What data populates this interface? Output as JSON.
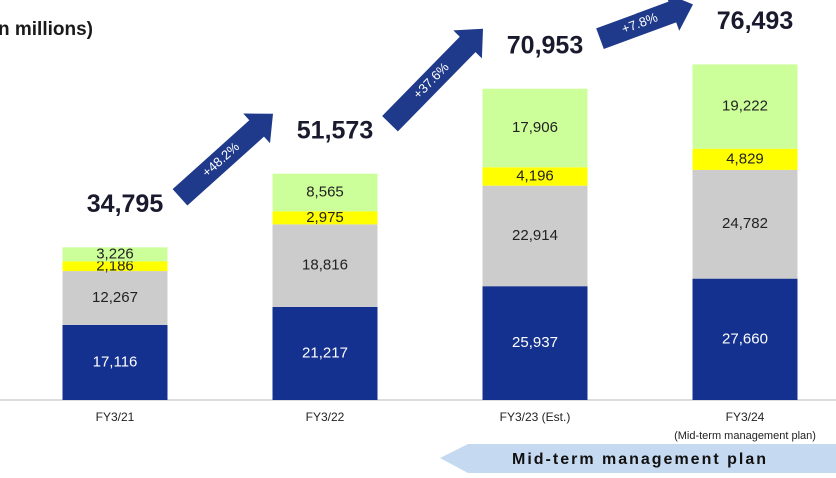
{
  "chart_data": {
    "type": "stacked_bar",
    "title": "n millions)",
    "categories": [
      "FY3/21",
      "FY3/22",
      "FY3/23 (Est.)",
      "FY3/24"
    ],
    "category_note": "(Mid-term management plan)",
    "series": [
      {
        "color": "#15318f",
        "values": [
          17116,
          21217,
          25937,
          27660
        ],
        "value_labels": [
          "17,116",
          "21,217",
          "25,937",
          "27,660"
        ]
      },
      {
        "color": "#cccccc",
        "values": [
          12267,
          18816,
          22914,
          24782
        ],
        "value_labels": [
          "12,267",
          "18,816",
          "22,914",
          "24,782"
        ]
      },
      {
        "color": "#ffff00",
        "values": [
          2186,
          2975,
          4196,
          4829
        ],
        "value_labels": [
          "2,186",
          "2,975",
          "4,196",
          "4,829"
        ]
      },
      {
        "color": "#ccff99",
        "values": [
          3226,
          8565,
          17906,
          19222
        ],
        "value_labels": [
          "3,226",
          "8,565",
          "17,906",
          "19,222"
        ]
      }
    ],
    "totals": [
      34795,
      51573,
      70953,
      76493
    ],
    "total_labels": [
      "34,795",
      "51,573",
      "70,953",
      "76,493"
    ],
    "growth_labels": [
      "+48.2%",
      "+37.6%",
      "+7.8%"
    ],
    "ylim": [
      0,
      80000
    ],
    "banner": "Mid-term management plan"
  }
}
